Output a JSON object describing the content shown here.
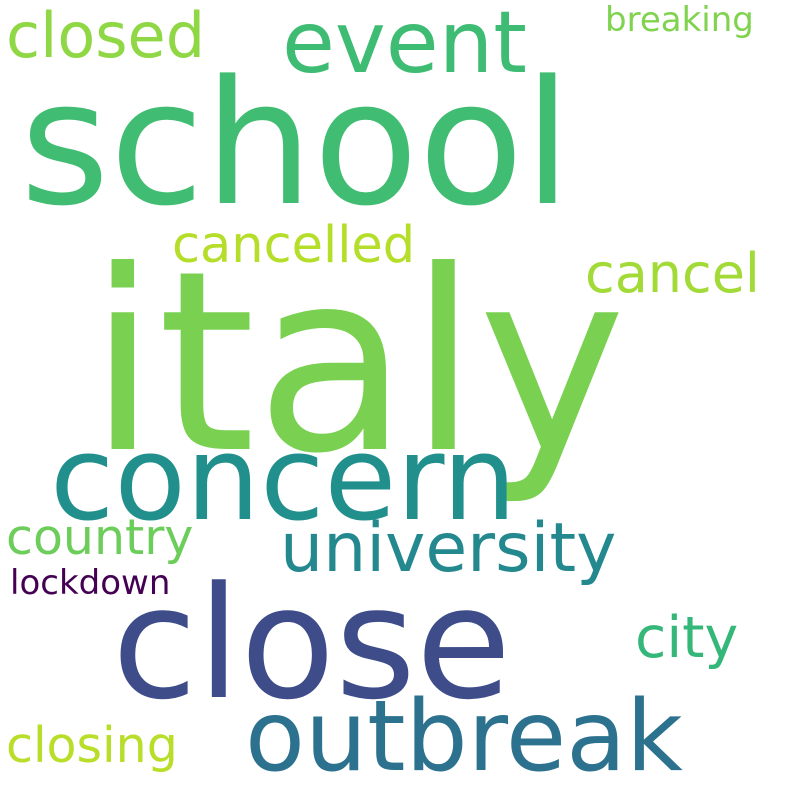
{
  "words": [
    {
      "id": "italy",
      "text": "italy",
      "color": "#7ad151"
    },
    {
      "id": "school",
      "text": "school",
      "color": "#40bd72"
    },
    {
      "id": "close",
      "text": "close",
      "color": "#3e4c8a"
    },
    {
      "id": "concern",
      "text": "concern",
      "color": "#21908d"
    },
    {
      "id": "event",
      "text": "event",
      "color": "#3fbc73"
    },
    {
      "id": "outbreak",
      "text": "outbreak",
      "color": "#2c728e"
    },
    {
      "id": "university",
      "text": "university",
      "color": "#23898e"
    },
    {
      "id": "closed",
      "text": "closed",
      "color": "#8fd744"
    },
    {
      "id": "cancelled",
      "text": "cancelled",
      "color": "#b5de2b"
    },
    {
      "id": "cancel",
      "text": "cancel",
      "color": "#a2da37"
    },
    {
      "id": "city",
      "text": "city",
      "color": "#35b779"
    },
    {
      "id": "country",
      "text": "country",
      "color": "#6ccd5a"
    },
    {
      "id": "closing",
      "text": "closing",
      "color": "#b8de29"
    },
    {
      "id": "breaking",
      "text": "breaking",
      "color": "#7fd34e"
    },
    {
      "id": "lockdown",
      "text": "lockdown",
      "color": "#440154"
    }
  ]
}
